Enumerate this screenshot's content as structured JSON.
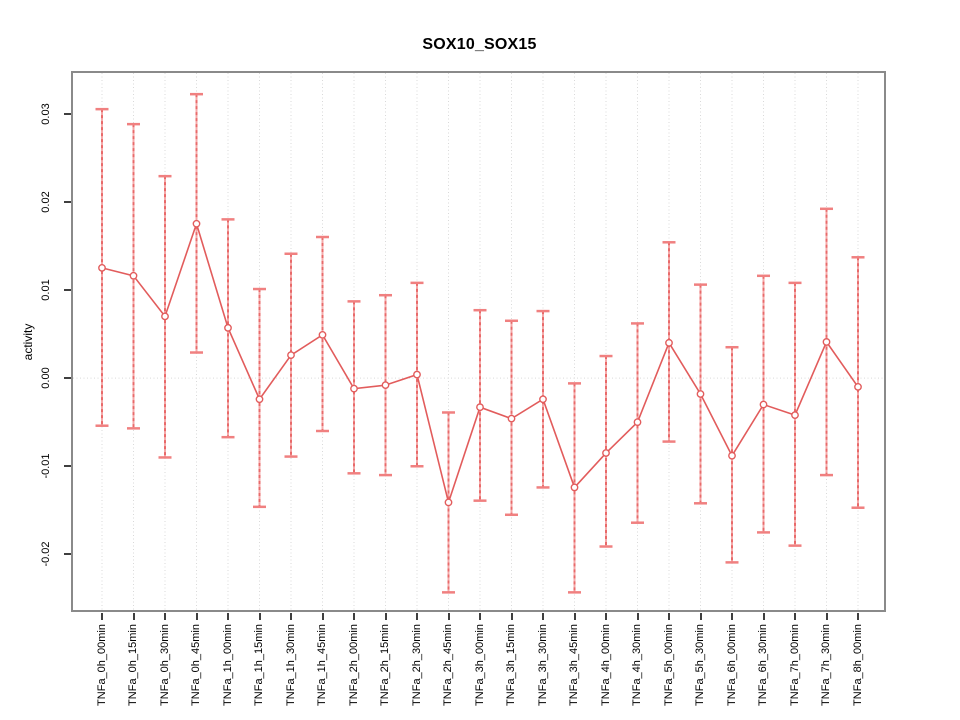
{
  "chart_data": {
    "type": "line",
    "title": "SOX10_SOX15",
    "xlabel": "",
    "ylabel": "activity",
    "legend_position": "none",
    "grid": "dotted vertical gridline at every category; dotted horizontal line at y=0",
    "marker": "open-circle with vertical error bars capped at both ends",
    "categories": [
      "TNFa_0h_00min",
      "TNFa_0h_15min",
      "TNFa_0h_30min",
      "TNFa_0h_45min",
      "TNFa_1h_00min",
      "TNFa_1h_15min",
      "TNFa_1h_30min",
      "TNFa_1h_45min",
      "TNFa_2h_00min",
      "TNFa_2h_15min",
      "TNFa_2h_30min",
      "TNFa_2h_45min",
      "TNFa_3h_00min",
      "TNFa_3h_15min",
      "TNFa_3h_30min",
      "TNFa_3h_45min",
      "TNFa_4h_00min",
      "TNFa_4h_30min",
      "TNFa_5h_00min",
      "TNFa_5h_30min",
      "TNFa_6h_00min",
      "TNFa_6h_30min",
      "TNFa_7h_00min",
      "TNFa_7h_30min",
      "TNFa_8h_00min"
    ],
    "series": [
      {
        "name": "SOX10_SOX15 activity",
        "values": [
          0.0125,
          0.0116,
          0.007,
          0.0175,
          0.0057,
          -0.0024,
          0.0026,
          0.0049,
          -0.0012,
          -0.0008,
          0.0004,
          -0.0141,
          -0.0033,
          -0.0046,
          -0.0024,
          -0.0124,
          -0.0085,
          -0.005,
          0.004,
          -0.0018,
          -0.0088,
          -0.003,
          -0.0042,
          0.0041,
          -0.001
        ],
        "upper": [
          0.0305,
          0.0288,
          0.0229,
          0.0322,
          0.018,
          0.0101,
          0.0141,
          0.016,
          0.0087,
          0.0094,
          0.0108,
          -0.0039,
          0.0077,
          0.0065,
          0.0076,
          -0.0006,
          0.0025,
          0.0062,
          0.0154,
          0.0106,
          0.0035,
          0.0116,
          0.0108,
          0.0192,
          0.0137
        ],
        "lower": [
          -0.0054,
          -0.0057,
          -0.009,
          0.0029,
          -0.0067,
          -0.0146,
          -0.0089,
          -0.006,
          -0.0108,
          -0.011,
          -0.01,
          -0.0243,
          -0.0139,
          -0.0155,
          -0.0124,
          -0.0243,
          -0.0191,
          -0.0164,
          -0.0072,
          -0.0142,
          -0.0209,
          -0.0175,
          -0.019,
          -0.011,
          -0.0147
        ]
      }
    ],
    "yticks": [
      0.03,
      0.02,
      0.01,
      0.0,
      -0.01,
      -0.02
    ],
    "ytick_labels": [
      "0.03",
      "0.02",
      "0.01",
      "0.00",
      "-0.01",
      "-0.02"
    ],
    "ylim": [
      -0.0263,
      0.0346
    ],
    "colors": {
      "series_line": "#e25c5c",
      "point_stroke": "#e25c5c",
      "point_fill": "#ffffff",
      "errorbar_light": "#f5a9a9",
      "errorbar_dark": "#e86a6a",
      "errorbar_cap": "#f08080",
      "gridline": "#d9d9d9",
      "axis_box": "#8a8a8a",
      "tick": "#3f3f3f",
      "text": "#000000"
    }
  }
}
